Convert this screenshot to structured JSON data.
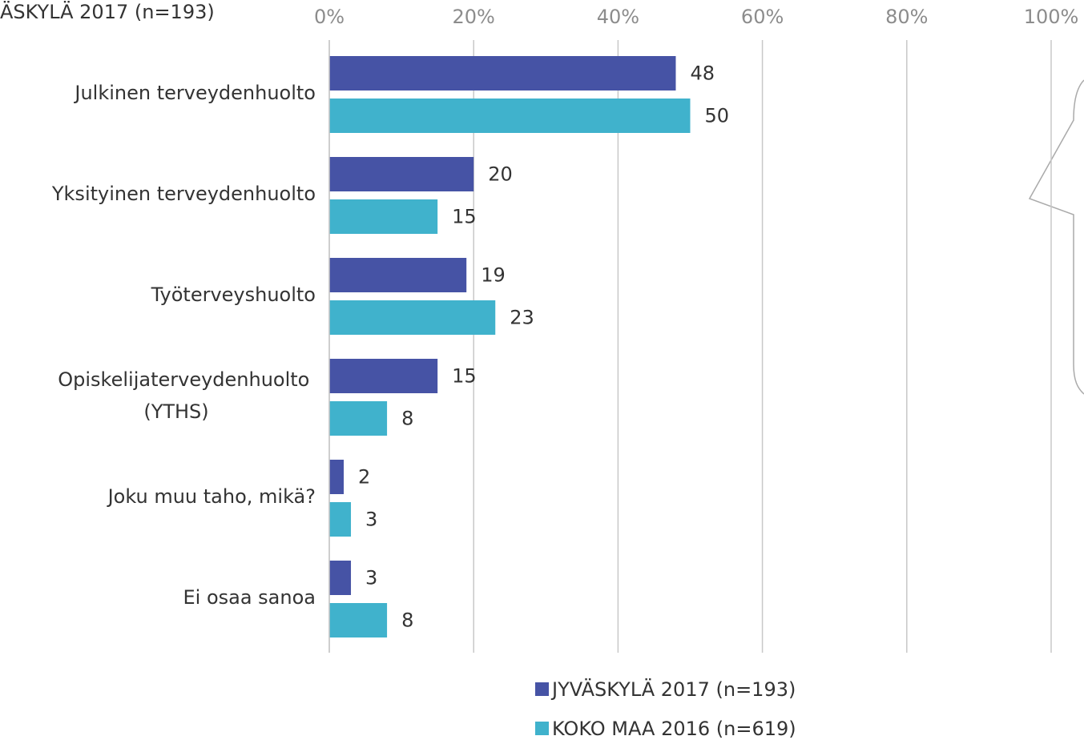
{
  "chart_data": {
    "type": "hbar",
    "subtitle": "ÄSKYLÄ 2017 (n=193)",
    "categories": [
      "Julkinen terveydenhuolto",
      "Yksityinen terveydenhuolto",
      "Työterveyshuolto",
      "Opiskelijaterveydenhuolto (YTHS)",
      "Joku muu taho, mikä?",
      "Ei osaa sanoa"
    ],
    "series": [
      {
        "name": "JYVÄSKYLÄ 2017 (n=193)",
        "color": "#4653a5",
        "values": [
          48,
          20,
          19,
          15,
          2,
          3
        ]
      },
      {
        "name": "KOKO MAA 2016 (n=619)",
        "color": "#40b2cc",
        "values": [
          50,
          15,
          23,
          8,
          3,
          8
        ]
      }
    ],
    "xlim": [
      0,
      100
    ],
    "xticks": [
      {
        "value": 0,
        "label": "0%"
      },
      {
        "value": 20,
        "label": "20%"
      },
      {
        "value": 40,
        "label": "40%"
      },
      {
        "value": 60,
        "label": "60%"
      },
      {
        "value": 80,
        "label": "80%"
      },
      {
        "value": 100,
        "label": "100%"
      }
    ],
    "grid": true
  }
}
